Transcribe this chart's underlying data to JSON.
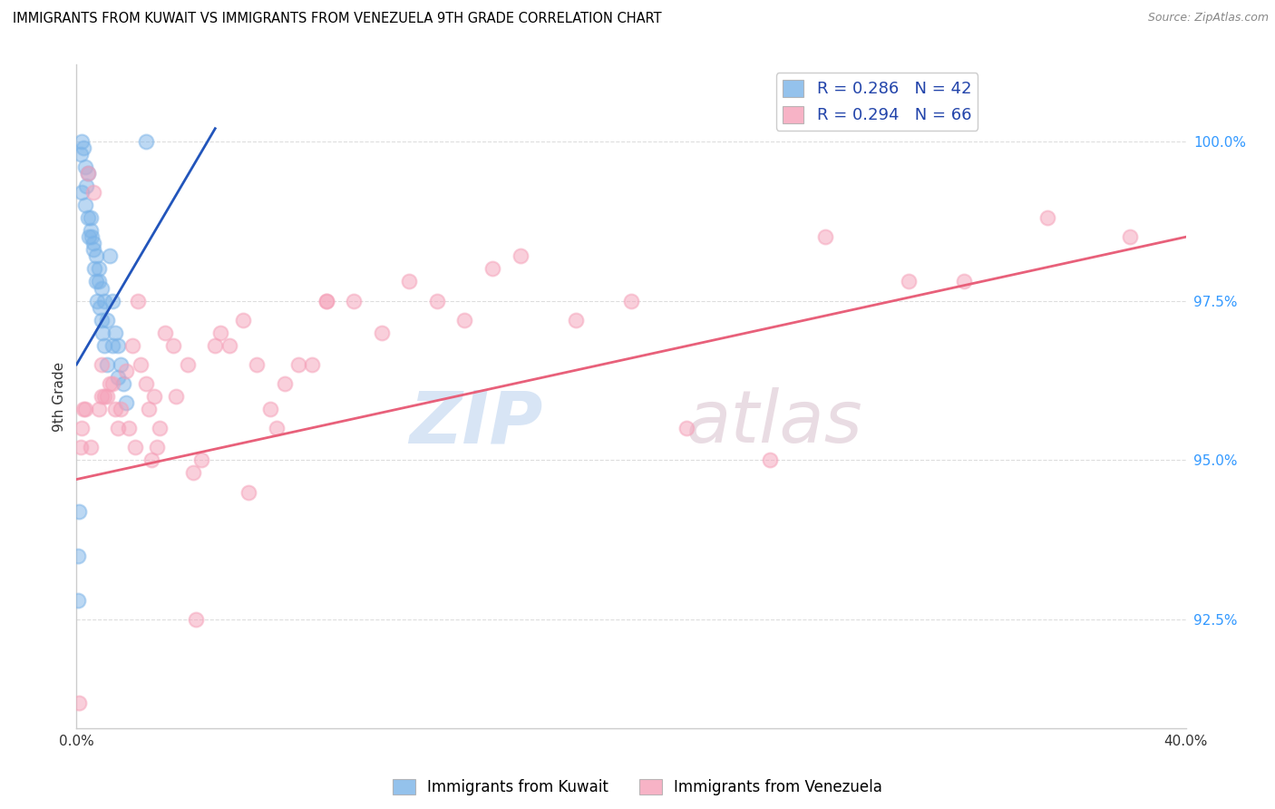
{
  "title": "IMMIGRANTS FROM KUWAIT VS IMMIGRANTS FROM VENEZUELA 9TH GRADE CORRELATION CHART",
  "source": "Source: ZipAtlas.com",
  "ylabel": "9th Grade",
  "y_ticks": [
    92.5,
    95.0,
    97.5,
    100.0
  ],
  "y_tick_labels": [
    "92.5%",
    "95.0%",
    "97.5%",
    "100.0%"
  ],
  "xlim": [
    0.0,
    40.0
  ],
  "ylim": [
    90.8,
    101.2
  ],
  "legend_kuwait": "Immigrants from Kuwait",
  "legend_venezuela": "Immigrants from Venezuela",
  "kuwait_R": "0.286",
  "kuwait_N": "42",
  "venezuela_R": "0.294",
  "venezuela_N": "66",
  "kuwait_color": "#7ab3e8",
  "venezuela_color": "#f5a0b8",
  "kuwait_line_color": "#2255bb",
  "venezuela_line_color": "#e8607a",
  "kuwait_points_x": [
    0.05,
    0.1,
    0.15,
    0.2,
    0.25,
    0.3,
    0.35,
    0.4,
    0.45,
    0.5,
    0.55,
    0.6,
    0.65,
    0.7,
    0.75,
    0.8,
    0.85,
    0.9,
    0.95,
    1.0,
    1.1,
    1.2,
    1.3,
    1.4,
    1.5,
    1.6,
    1.7,
    1.8,
    0.2,
    0.3,
    0.4,
    0.5,
    0.6,
    0.7,
    0.8,
    0.9,
    1.0,
    1.1,
    1.3,
    1.5,
    0.05,
    2.5
  ],
  "kuwait_points_y": [
    93.5,
    94.2,
    99.8,
    100.0,
    99.9,
    99.6,
    99.3,
    99.5,
    98.5,
    98.8,
    98.5,
    98.3,
    98.0,
    97.8,
    97.5,
    97.8,
    97.4,
    97.2,
    97.0,
    96.8,
    96.5,
    98.2,
    97.5,
    97.0,
    96.8,
    96.5,
    96.2,
    95.9,
    99.2,
    99.0,
    98.8,
    98.6,
    98.4,
    98.2,
    98.0,
    97.7,
    97.5,
    97.2,
    96.8,
    96.3,
    92.8,
    100.0
  ],
  "kuwait_line_x": [
    0.0,
    5.0
  ],
  "kuwait_line_y": [
    96.5,
    100.2
  ],
  "venezuela_points_x": [
    0.1,
    0.2,
    0.3,
    0.5,
    0.8,
    1.0,
    1.2,
    1.5,
    1.8,
    2.0,
    2.2,
    2.5,
    2.8,
    3.0,
    3.5,
    4.0,
    4.5,
    5.0,
    5.5,
    6.0,
    6.5,
    7.0,
    7.5,
    8.0,
    9.0,
    10.0,
    11.0,
    12.0,
    13.0,
    14.0,
    15.0,
    16.0,
    18.0,
    20.0,
    22.0,
    25.0,
    27.0,
    30.0,
    32.0,
    35.0,
    38.0,
    0.4,
    0.6,
    0.9,
    1.1,
    1.3,
    1.6,
    1.9,
    2.1,
    2.3,
    2.6,
    2.9,
    3.2,
    3.6,
    4.2,
    5.2,
    6.2,
    7.2,
    8.5,
    4.3,
    2.7,
    0.9,
    1.4,
    9.0,
    0.15,
    0.25
  ],
  "venezuela_points_y": [
    91.2,
    95.5,
    95.8,
    95.2,
    95.8,
    96.0,
    96.2,
    95.5,
    96.4,
    96.8,
    97.5,
    96.2,
    96.0,
    95.5,
    96.8,
    96.5,
    95.0,
    96.8,
    96.8,
    97.2,
    96.5,
    95.8,
    96.2,
    96.5,
    97.5,
    97.5,
    97.0,
    97.8,
    97.5,
    97.2,
    98.0,
    98.2,
    97.2,
    97.5,
    95.5,
    95.0,
    98.5,
    97.8,
    97.8,
    98.8,
    98.5,
    99.5,
    99.2,
    96.5,
    96.0,
    96.2,
    95.8,
    95.5,
    95.2,
    96.5,
    95.8,
    95.2,
    97.0,
    96.0,
    94.8,
    97.0,
    94.5,
    95.5,
    96.5,
    92.5,
    95.0,
    96.0,
    95.8,
    97.5,
    95.2,
    95.8
  ],
  "venezuela_line_x": [
    0.0,
    40.0
  ],
  "venezuela_line_y": [
    94.7,
    98.5
  ]
}
